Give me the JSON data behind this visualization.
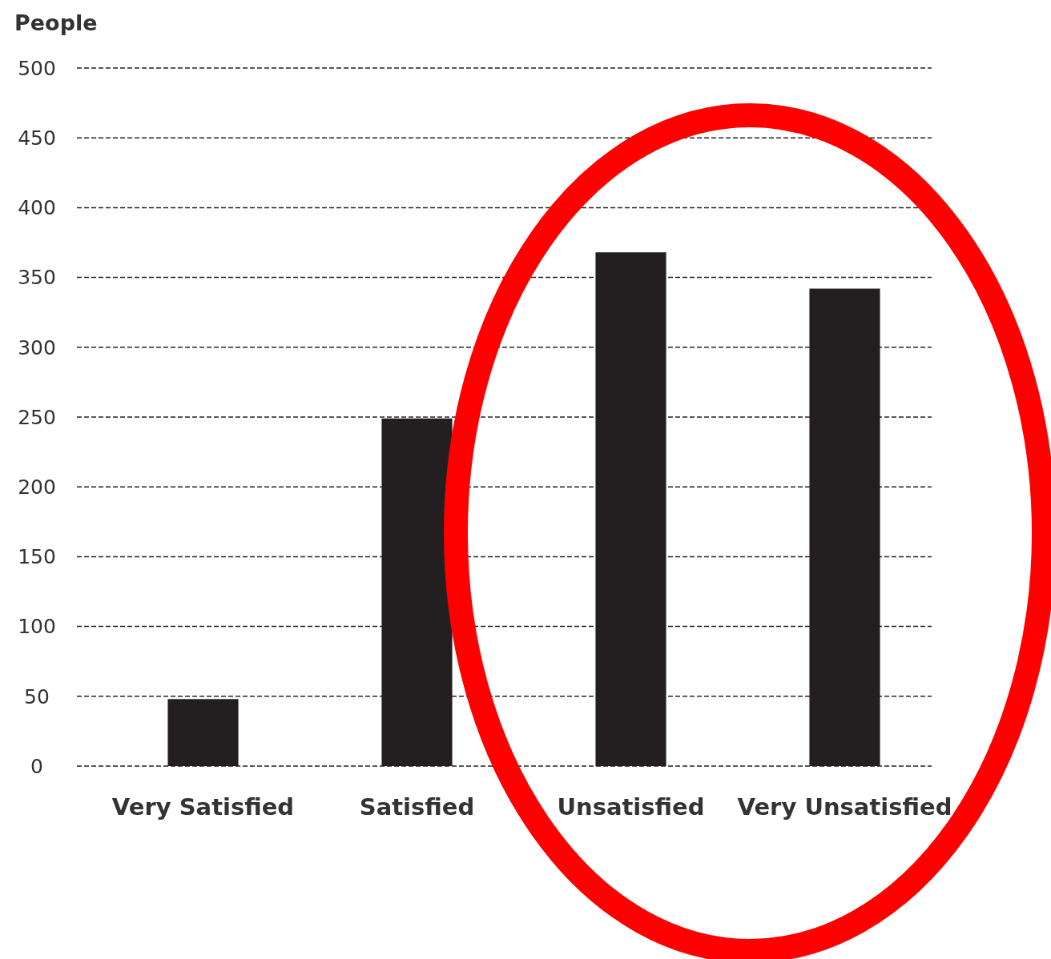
{
  "chart_data": {
    "type": "bar",
    "ylabel": "People",
    "categories": [
      "Very Satisfied",
      "Satisfied",
      "Unsatisfied",
      "Very Unsatisfied"
    ],
    "values": [
      48,
      249,
      368,
      342
    ],
    "color": "#231f20",
    "ylim": [
      0,
      500
    ],
    "yticks": [
      0,
      50,
      100,
      150,
      200,
      250,
      300,
      350,
      400,
      450,
      500
    ],
    "grid": true
  }
}
